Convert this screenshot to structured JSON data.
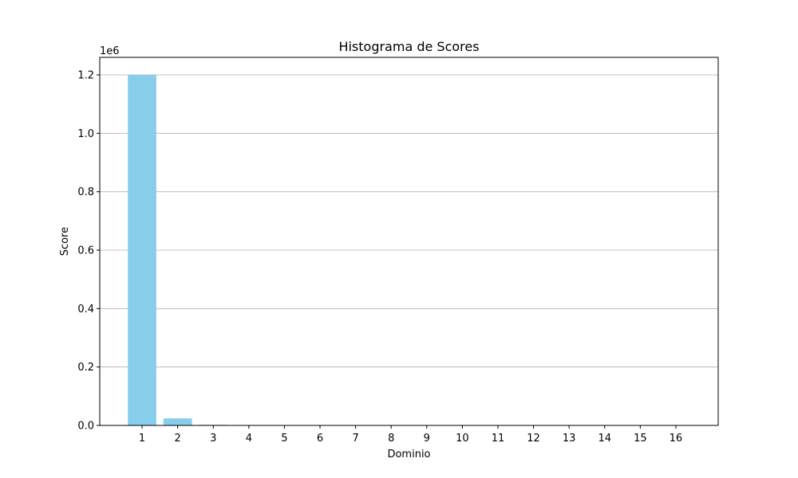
{
  "chart_data": {
    "type": "bar",
    "title": "Histograma de Scores",
    "xlabel": "Dominio",
    "ylabel": "Score",
    "offset_text": "1e6",
    "categories": [
      "1",
      "2",
      "3",
      "4",
      "5",
      "6",
      "7",
      "8",
      "9",
      "10",
      "11",
      "12",
      "13",
      "14",
      "15",
      "16"
    ],
    "values": [
      1200000,
      24000,
      2000,
      800,
      500,
      400,
      300,
      250,
      200,
      150,
      120,
      100,
      80,
      60,
      50,
      40
    ],
    "yticks": [
      0,
      200000,
      400000,
      600000,
      800000,
      1000000,
      1200000
    ],
    "ytick_labels": [
      "0.0",
      "0.2",
      "0.4",
      "0.6",
      "0.8",
      "1.0",
      "1.2"
    ],
    "ylim": [
      0,
      1260000
    ],
    "grid": "y",
    "bar_color": "#87ceeb"
  }
}
